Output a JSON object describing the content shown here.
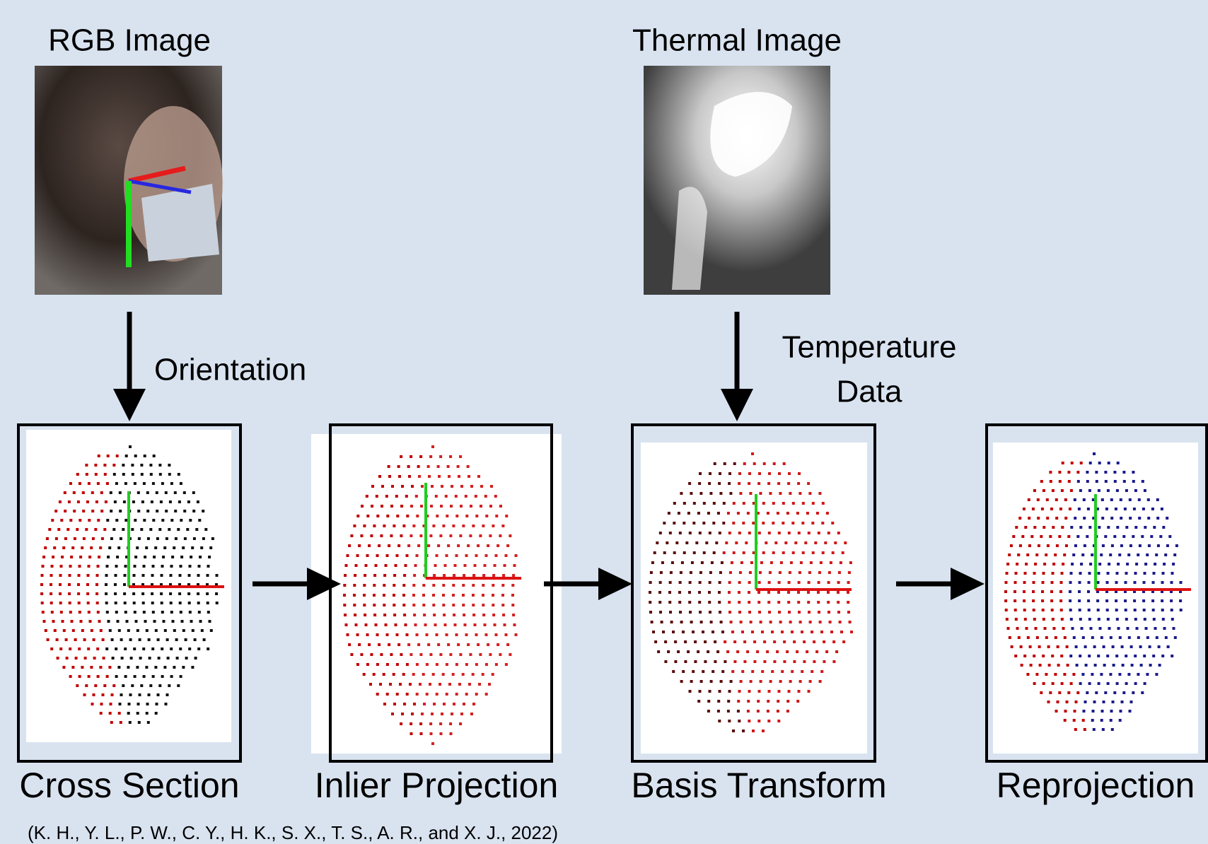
{
  "inputs": [
    {
      "label": "RGB Image"
    },
    {
      "label": "Thermal Image"
    }
  ],
  "edges": [
    {
      "lines": [
        "Orientation"
      ]
    },
    {
      "lines": [
        "Temperature",
        "Data"
      ]
    }
  ],
  "steps": [
    {
      "label": "Cross Section"
    },
    {
      "label": "Inlier Projection"
    },
    {
      "label": "Basis Transform"
    },
    {
      "label": "Reprojection"
    }
  ],
  "citation": "(K. H., Y. L., P. W., C. Y., H. K., S. X., T. S., A. R., and X. J., 2022)"
}
